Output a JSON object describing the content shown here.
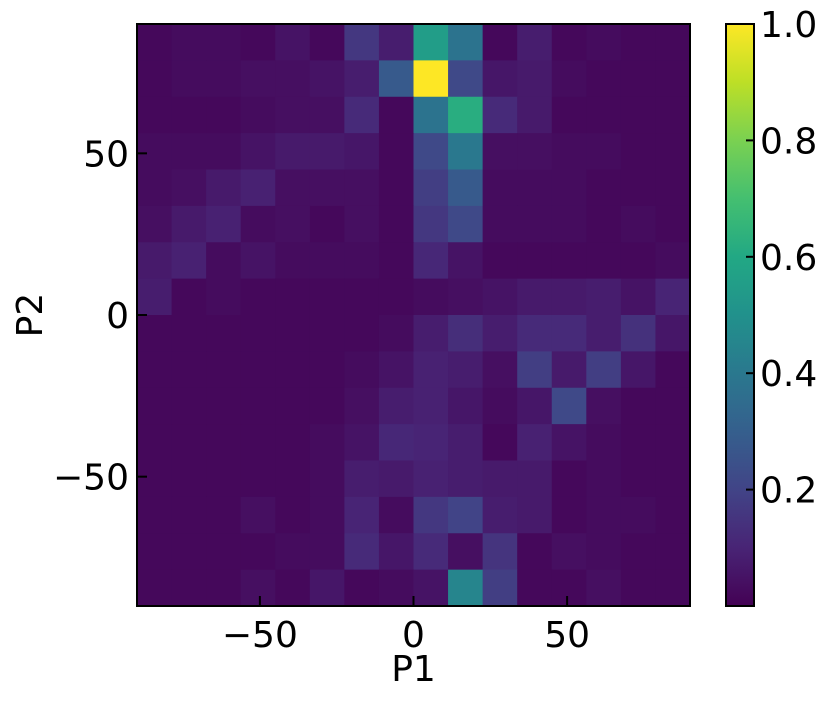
{
  "chart_data": {
    "type": "heatmap",
    "title": "",
    "xlabel": "P1",
    "ylabel": "P2",
    "xlim": [
      -90,
      90
    ],
    "ylim": [
      -90,
      90
    ],
    "bin_width": 11.25,
    "x_ticks": [
      {
        "value": -50,
        "label": "−50"
      },
      {
        "value": 0,
        "label": "0"
      },
      {
        "value": 50,
        "label": "50"
      }
    ],
    "y_ticks": [
      {
        "value": -50,
        "label": "−50"
      },
      {
        "value": 0,
        "label": "0"
      },
      {
        "value": 50,
        "label": "50"
      }
    ],
    "colorbar": {
      "colormap": "viridis",
      "range": [
        0.0,
        1.0
      ],
      "ticks": [
        {
          "value": 0.2,
          "label": "0.2"
        },
        {
          "value": 0.4,
          "label": "0.4"
        },
        {
          "value": 0.6,
          "label": "0.6"
        },
        {
          "value": 0.8,
          "label": "0.8"
        },
        {
          "value": 1.0,
          "label": "1.0"
        }
      ]
    },
    "values": [
      [
        0.02,
        0.03,
        0.03,
        0.02,
        0.05,
        0.02,
        0.16,
        0.08,
        0.55,
        0.38,
        0.02,
        0.08,
        0.02,
        0.03,
        0.02,
        0.02
      ],
      [
        0.02,
        0.03,
        0.03,
        0.04,
        0.04,
        0.05,
        0.08,
        0.28,
        1.0,
        0.22,
        0.06,
        0.07,
        0.03,
        0.02,
        0.02,
        0.02
      ],
      [
        0.02,
        0.02,
        0.02,
        0.03,
        0.04,
        0.04,
        0.12,
        0.02,
        0.38,
        0.62,
        0.12,
        0.07,
        0.02,
        0.02,
        0.02,
        0.02
      ],
      [
        0.03,
        0.03,
        0.03,
        0.05,
        0.07,
        0.07,
        0.06,
        0.02,
        0.22,
        0.4,
        0.04,
        0.04,
        0.03,
        0.03,
        0.02,
        0.02
      ],
      [
        0.03,
        0.04,
        0.07,
        0.09,
        0.04,
        0.04,
        0.04,
        0.02,
        0.18,
        0.28,
        0.03,
        0.03,
        0.03,
        0.02,
        0.02,
        0.02
      ],
      [
        0.04,
        0.07,
        0.09,
        0.03,
        0.04,
        0.02,
        0.04,
        0.02,
        0.16,
        0.22,
        0.03,
        0.03,
        0.03,
        0.02,
        0.03,
        0.02
      ],
      [
        0.07,
        0.09,
        0.03,
        0.05,
        0.03,
        0.03,
        0.03,
        0.02,
        0.11,
        0.05,
        0.02,
        0.02,
        0.02,
        0.02,
        0.02,
        0.03
      ],
      [
        0.08,
        0.02,
        0.03,
        0.02,
        0.02,
        0.02,
        0.02,
        0.02,
        0.03,
        0.04,
        0.05,
        0.07,
        0.07,
        0.08,
        0.05,
        0.1
      ],
      [
        0.02,
        0.02,
        0.02,
        0.02,
        0.02,
        0.02,
        0.02,
        0.03,
        0.08,
        0.13,
        0.08,
        0.12,
        0.12,
        0.08,
        0.14,
        0.06
      ],
      [
        0.02,
        0.02,
        0.02,
        0.02,
        0.02,
        0.02,
        0.03,
        0.05,
        0.09,
        0.08,
        0.04,
        0.18,
        0.07,
        0.18,
        0.06,
        0.02
      ],
      [
        0.02,
        0.02,
        0.02,
        0.02,
        0.02,
        0.02,
        0.04,
        0.08,
        0.09,
        0.06,
        0.03,
        0.06,
        0.22,
        0.04,
        0.02,
        0.02
      ],
      [
        0.02,
        0.02,
        0.02,
        0.02,
        0.02,
        0.03,
        0.05,
        0.11,
        0.1,
        0.08,
        0.02,
        0.09,
        0.05,
        0.03,
        0.02,
        0.02
      ],
      [
        0.02,
        0.02,
        0.02,
        0.02,
        0.02,
        0.03,
        0.08,
        0.07,
        0.09,
        0.08,
        0.07,
        0.07,
        0.02,
        0.03,
        0.02,
        0.02
      ],
      [
        0.02,
        0.02,
        0.02,
        0.04,
        0.02,
        0.03,
        0.1,
        0.03,
        0.16,
        0.2,
        0.08,
        0.07,
        0.02,
        0.03,
        0.03,
        0.02
      ],
      [
        0.02,
        0.02,
        0.02,
        0.02,
        0.03,
        0.03,
        0.12,
        0.06,
        0.12,
        0.04,
        0.15,
        0.02,
        0.04,
        0.03,
        0.02,
        0.02
      ],
      [
        0.02,
        0.02,
        0.02,
        0.04,
        0.02,
        0.06,
        0.02,
        0.03,
        0.05,
        0.45,
        0.18,
        0.02,
        0.02,
        0.04,
        0.02,
        0.02
      ]
    ]
  }
}
